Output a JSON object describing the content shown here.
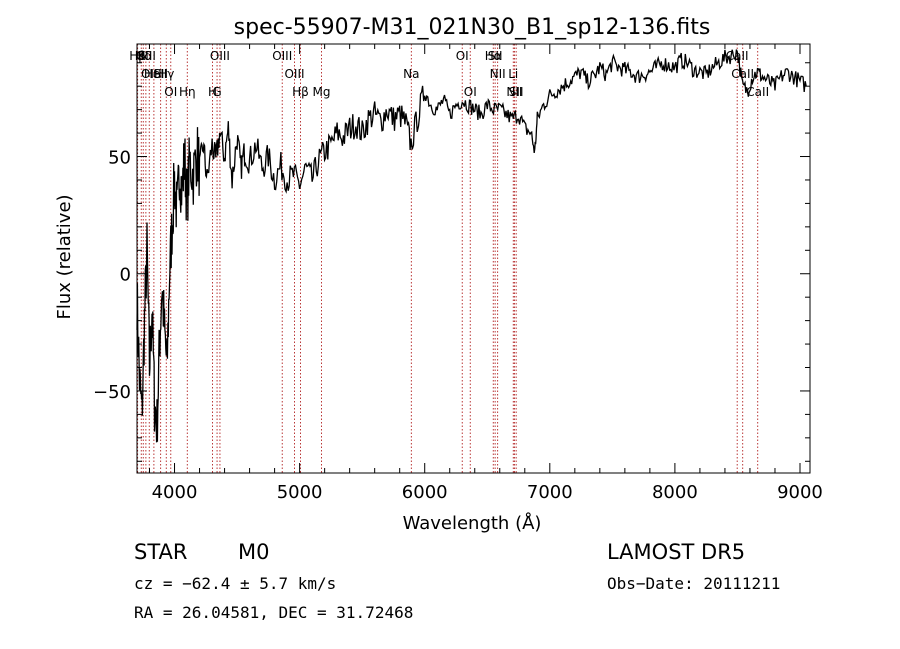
{
  "chart_data": {
    "type": "line",
    "title": "spec-55907-M31_021N30_B1_sp12-136.fits",
    "xlabel": "Wavelength (Å)",
    "ylabel": "Flux (relative)",
    "xlim": [
      3700,
      9080
    ],
    "ylim": [
      -85,
      98
    ],
    "x_ticks": [
      4000,
      5000,
      6000,
      7000,
      8000,
      9000
    ],
    "y_ticks": [
      -50,
      0,
      50
    ],
    "grid": false,
    "line_color": "#000000",
    "series": [
      {
        "x": [
          3700,
          3720,
          3740,
          3760,
          3780,
          3800,
          3820,
          3840,
          3860,
          3880,
          3900,
          3920,
          3940,
          3960,
          3980,
          4000,
          4020,
          4040,
          4060,
          4080,
          4100,
          4120,
          4150,
          4180,
          4200,
          4230,
          4260,
          4300,
          4330,
          4360,
          4400,
          4430,
          4460,
          4500,
          4530,
          4560,
          4600,
          4650,
          4700,
          4750,
          4800,
          4850,
          4900,
          4950,
          5000,
          5050,
          5100,
          5150,
          5200,
          5250,
          5300,
          5350,
          5400,
          5450,
          5500,
          5550,
          5600,
          5650,
          5700,
          5750,
          5800,
          5850,
          5890,
          5950,
          6000,
          6050,
          6100,
          6150,
          6200,
          6250,
          6300,
          6350,
          6400,
          6450,
          6500,
          6550,
          6600,
          6650,
          6700,
          6750,
          6800,
          6850,
          6880,
          6900,
          6950,
          7000,
          7050,
          7100,
          7150,
          7200,
          7250,
          7300,
          7350,
          7400,
          7450,
          7500,
          7550,
          7600,
          7650,
          7700,
          7750,
          7800,
          7850,
          7900,
          7950,
          8000,
          8050,
          8100,
          8150,
          8200,
          8250,
          8300,
          8350,
          8400,
          8450,
          8500,
          8540,
          8580,
          8620,
          8660,
          8700,
          8750,
          8800,
          8850,
          8900,
          8950,
          9000,
          9050
        ],
        "y": [
          -10,
          -45,
          -60,
          -20,
          10,
          -40,
          -15,
          -55,
          -65,
          -30,
          -5,
          -25,
          -40,
          0,
          20,
          40,
          25,
          45,
          35,
          50,
          30,
          48,
          42,
          52,
          45,
          55,
          40,
          55,
          48,
          60,
          50,
          62,
          40,
          58,
          45,
          52,
          48,
          55,
          45,
          50,
          40,
          46,
          40,
          42,
          38,
          45,
          40,
          48,
          52,
          55,
          60,
          58,
          62,
          64,
          60,
          66,
          68,
          65,
          70,
          66,
          68,
          64,
          55,
          68,
          78,
          72,
          70,
          74,
          68,
          72,
          74,
          72,
          70,
          68,
          72,
          70,
          70,
          68,
          66,
          68,
          62,
          60,
          52,
          66,
          72,
          76,
          78,
          80,
          82,
          84,
          86,
          82,
          84,
          88,
          85,
          90,
          88,
          87,
          86,
          84,
          85,
          86,
          88,
          90,
          89,
          88,
          91,
          90,
          87,
          86,
          85,
          88,
          90,
          92,
          93,
          95,
          80,
          78,
          84,
          86,
          84,
          82,
          80,
          84,
          86,
          84,
          82,
          80
        ]
      }
    ],
    "lines_ll": [
      {
        "label": "Hβ",
        "wavelength": 3705,
        "row": 0
      },
      {
        "label": "K",
        "wavelength": 3734,
        "row": 0
      },
      {
        "label": "Hδ",
        "wavelength": 3750,
        "row": 0
      },
      {
        "label": "OIII",
        "wavelength": 3771,
        "row": 0
      },
      {
        "label": "OII",
        "wavelength": 3798,
        "row": 1
      },
      {
        "label": "HeI",
        "wavelength": 3835,
        "row": 1
      },
      {
        "label": "SII",
        "wavelength": 3889,
        "row": 1
      },
      {
        "label": "Hγ",
        "wavelength": 3934,
        "row": 1
      },
      {
        "label": "OI",
        "wavelength": 3970,
        "row": 2
      },
      {
        "label": "Hη",
        "wavelength": 4102,
        "row": 2
      },
      {
        "label": "H",
        "wavelength": 4304,
        "row": 2
      },
      {
        "label": "G",
        "wavelength": 4340,
        "row": 2
      },
      {
        "label": "OIII",
        "wavelength": 4363,
        "row": 0
      },
      {
        "label": "OIII",
        "wavelength": 4861,
        "row": 0
      },
      {
        "label": "OIII",
        "wavelength": 4959,
        "row": 1
      },
      {
        "label": "Hβ",
        "wavelength": 5007,
        "row": 2
      },
      {
        "label": "Mg",
        "wavelength": 5175,
        "row": 2
      },
      {
        "label": "Na",
        "wavelength": 5893,
        "row": 1
      },
      {
        "label": "OI",
        "wavelength": 6300,
        "row": 0
      },
      {
        "label": "OI",
        "wavelength": 6364,
        "row": 2
      },
      {
        "label": "Hα",
        "wavelength": 6548,
        "row": 0
      },
      {
        "label": "SII",
        "wavelength": 6563,
        "row": 0
      },
      {
        "label": "NII",
        "wavelength": 6583,
        "row": 1
      },
      {
        "label": "Li",
        "wavelength": 6708,
        "row": 1
      },
      {
        "label": "NII",
        "wavelength": 6717,
        "row": 2
      },
      {
        "label": "SII",
        "wavelength": 6731,
        "row": 2
      },
      {
        "label": "CaII",
        "wavelength": 8498,
        "row": 0
      },
      {
        "label": "CaII",
        "wavelength": 8542,
        "row": 1
      },
      {
        "label": "CaII",
        "wavelength": 8662,
        "row": 2
      }
    ]
  },
  "info": {
    "class_label": "STAR",
    "subclass": "M0",
    "survey": "LAMOST  DR5",
    "cz": "cz = −62.4 ± 5.7 km/s",
    "obs_date": "Obs−Date: 20111211",
    "coords": "RA =  26.04581, DEC =  31.72468"
  }
}
